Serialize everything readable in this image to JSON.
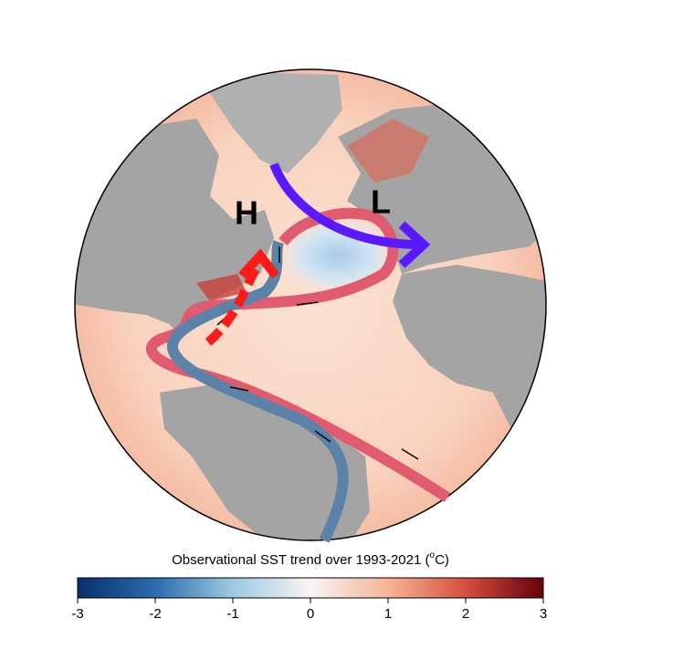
{
  "map": {
    "labels": [
      "H",
      "L"
    ]
  },
  "colorbar": {
    "label_parts": [
      "Observational SST trend over 1993-2021 (",
      "o",
      "C)"
    ],
    "lim": [
      -3,
      3
    ],
    "ticks": [
      -3,
      -2,
      -1,
      0,
      1,
      2,
      3
    ]
  }
}
